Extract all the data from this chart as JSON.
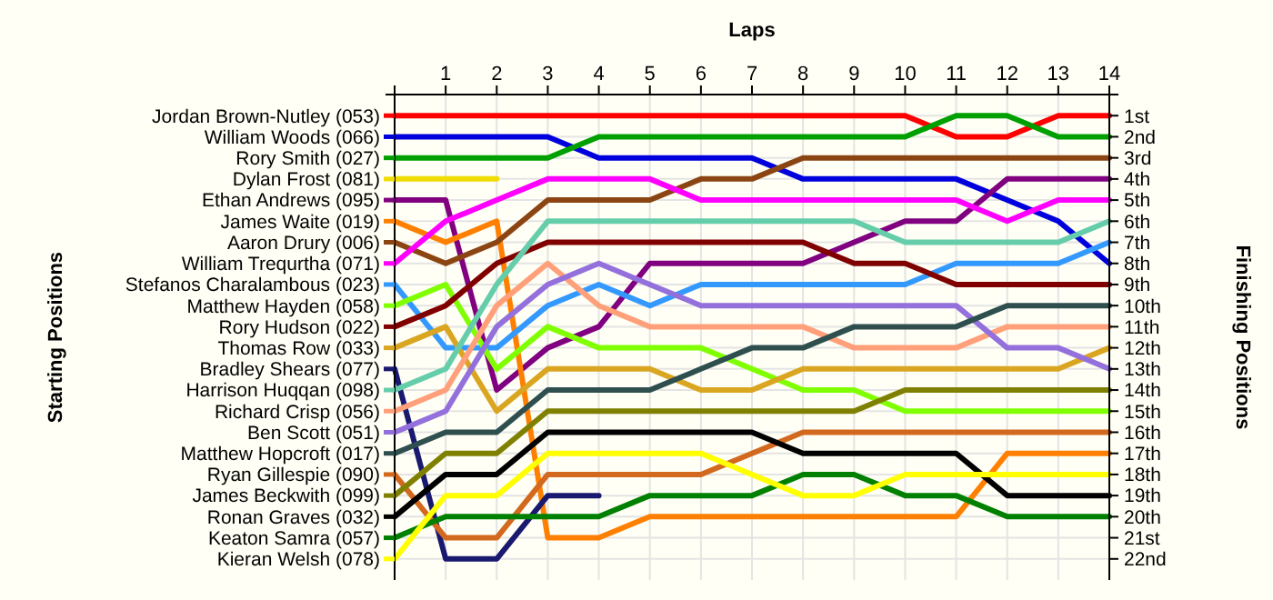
{
  "chart_data": {
    "type": "line",
    "xlabel": "Laps",
    "legend_title": "Starting Positions",
    "ylabel": "Finishing Positions",
    "legend": "left",
    "x": [
      0,
      1,
      2,
      3,
      4,
      5,
      6,
      7,
      8,
      9,
      10,
      11,
      12,
      13,
      14
    ],
    "xlim": [
      0,
      14
    ],
    "xticks": [
      1,
      2,
      3,
      4,
      5,
      6,
      7,
      8,
      9,
      10,
      11,
      12,
      13,
      14
    ],
    "ylim": [
      23,
      0
    ],
    "yticks": [
      {
        "value": 1,
        "label": "1st"
      },
      {
        "value": 2,
        "label": "2nd"
      },
      {
        "value": 3,
        "label": "3rd"
      },
      {
        "value": 4,
        "label": "4th"
      },
      {
        "value": 5,
        "label": "5th"
      },
      {
        "value": 6,
        "label": "6th"
      },
      {
        "value": 7,
        "label": "7th"
      },
      {
        "value": 8,
        "label": "8th"
      },
      {
        "value": 9,
        "label": "9th"
      },
      {
        "value": 10,
        "label": "10th"
      },
      {
        "value": 11,
        "label": "11th"
      },
      {
        "value": 12,
        "label": "12th"
      },
      {
        "value": 13,
        "label": "13th"
      },
      {
        "value": 14,
        "label": "14th"
      },
      {
        "value": 15,
        "label": "15th"
      },
      {
        "value": 16,
        "label": "16th"
      },
      {
        "value": 17,
        "label": "17th"
      },
      {
        "value": 18,
        "label": "18th"
      },
      {
        "value": 19,
        "label": "19th"
      },
      {
        "value": 20,
        "label": "20th"
      },
      {
        "value": 21,
        "label": "21st"
      },
      {
        "value": 22,
        "label": "22nd"
      }
    ],
    "grid": true,
    "line_style": "solid",
    "series": [
      {
        "name": "Jordan Brown-Nutley (053)",
        "color": "#ff0000",
        "values": [
          1,
          1,
          1,
          1,
          1,
          1,
          1,
          1,
          1,
          1,
          1,
          2,
          2,
          1,
          1
        ]
      },
      {
        "name": "William Woods (066)",
        "color": "#0000dd",
        "values": [
          2,
          2,
          2,
          2,
          3,
          3,
          3,
          3,
          4,
          4,
          4,
          4,
          5,
          6,
          8
        ]
      },
      {
        "name": "Rory Smith (027)",
        "color": "#00a000",
        "values": [
          3,
          3,
          3,
          3,
          2,
          2,
          2,
          2,
          2,
          2,
          2,
          1,
          1,
          2,
          2
        ]
      },
      {
        "name": "Dylan Frost (081)",
        "color": "#f0dc00",
        "values": [
          4,
          4,
          4,
          null,
          null,
          null,
          null,
          null,
          null,
          null,
          null,
          null,
          null,
          null,
          null
        ]
      },
      {
        "name": "Ethan Andrews (095)",
        "color": "#800080",
        "values": [
          5,
          5,
          14,
          12,
          11,
          8,
          8,
          8,
          8,
          7,
          6,
          6,
          4,
          4,
          4
        ]
      },
      {
        "name": "James Waite (019)",
        "color": "#ff8000",
        "values": [
          6,
          7,
          6,
          21,
          21,
          20,
          20,
          20,
          20,
          20,
          20,
          20,
          17,
          17,
          17
        ]
      },
      {
        "name": "Aaron Drury (006)",
        "color": "#8b4513",
        "values": [
          7,
          8,
          7,
          5,
          5,
          5,
          4,
          4,
          3,
          3,
          3,
          3,
          3,
          3,
          3
        ]
      },
      {
        "name": "William Trequrtha (071)",
        "color": "#ff00ff",
        "values": [
          8,
          6,
          5,
          4,
          4,
          4,
          5,
          5,
          5,
          5,
          5,
          5,
          6,
          5,
          5
        ]
      },
      {
        "name": "Stefanos Charalambous (023)",
        "color": "#3399ff",
        "values": [
          9,
          12,
          12,
          10,
          9,
          10,
          9,
          9,
          9,
          9,
          9,
          8,
          8,
          8,
          7
        ]
      },
      {
        "name": "Matthew Hayden (058)",
        "color": "#80ff00",
        "values": [
          10,
          9,
          13,
          11,
          12,
          12,
          12,
          13,
          14,
          14,
          15,
          15,
          15,
          15,
          15
        ]
      },
      {
        "name": "Rory Hudson (022)",
        "color": "#800000",
        "values": [
          11,
          10,
          8,
          7,
          7,
          7,
          7,
          7,
          7,
          8,
          8,
          9,
          9,
          9,
          9
        ]
      },
      {
        "name": "Thomas Row (033)",
        "color": "#daa520",
        "values": [
          12,
          11,
          15,
          13,
          13,
          13,
          14,
          14,
          13,
          13,
          13,
          13,
          13,
          13,
          12
        ]
      },
      {
        "name": "Bradley Shears (077)",
        "color": "#191970",
        "values": [
          13,
          22,
          22,
          19,
          19,
          null,
          null,
          null,
          null,
          null,
          null,
          null,
          null,
          null,
          null
        ]
      },
      {
        "name": "Harrison Huqqan (098)",
        "color": "#66cdaa",
        "values": [
          14,
          13,
          9,
          6,
          6,
          6,
          6,
          6,
          6,
          6,
          7,
          7,
          7,
          7,
          6
        ]
      },
      {
        "name": "Richard Crisp (056)",
        "color": "#ffa07a",
        "values": [
          15,
          14,
          10,
          8,
          10,
          11,
          11,
          11,
          11,
          12,
          12,
          12,
          11,
          11,
          11
        ]
      },
      {
        "name": "Ben Scott (051)",
        "color": "#9370db",
        "values": [
          16,
          15,
          11,
          9,
          8,
          9,
          10,
          10,
          10,
          10,
          10,
          10,
          12,
          12,
          13
        ]
      },
      {
        "name": "Matthew Hopcroft (017)",
        "color": "#2f4f4f",
        "values": [
          17,
          16,
          16,
          14,
          14,
          14,
          13,
          12,
          12,
          11,
          11,
          11,
          10,
          10,
          10
        ]
      },
      {
        "name": "Ryan Gillespie (090)",
        "color": "#d2691e",
        "values": [
          18,
          21,
          21,
          18,
          18,
          18,
          18,
          17,
          16,
          16,
          16,
          16,
          16,
          16,
          16
        ]
      },
      {
        "name": "James Beckwith (099)",
        "color": "#808000",
        "values": [
          19,
          17,
          17,
          15,
          15,
          15,
          15,
          15,
          15,
          15,
          14,
          14,
          14,
          14,
          14
        ]
      },
      {
        "name": "Ronan Graves (032)",
        "color": "#000000",
        "values": [
          20,
          18,
          18,
          16,
          16,
          16,
          16,
          16,
          17,
          17,
          17,
          17,
          19,
          19,
          19
        ]
      },
      {
        "name": "Keaton Samra (057)",
        "color": "#008000",
        "values": [
          21,
          20,
          20,
          20,
          20,
          19,
          19,
          19,
          18,
          18,
          19,
          19,
          20,
          20,
          20
        ]
      },
      {
        "name": "Kieran Welsh (078)",
        "color": "#ffff00",
        "values": [
          22,
          19,
          19,
          17,
          17,
          17,
          17,
          18,
          19,
          19,
          18,
          18,
          18,
          18,
          18
        ]
      }
    ]
  }
}
